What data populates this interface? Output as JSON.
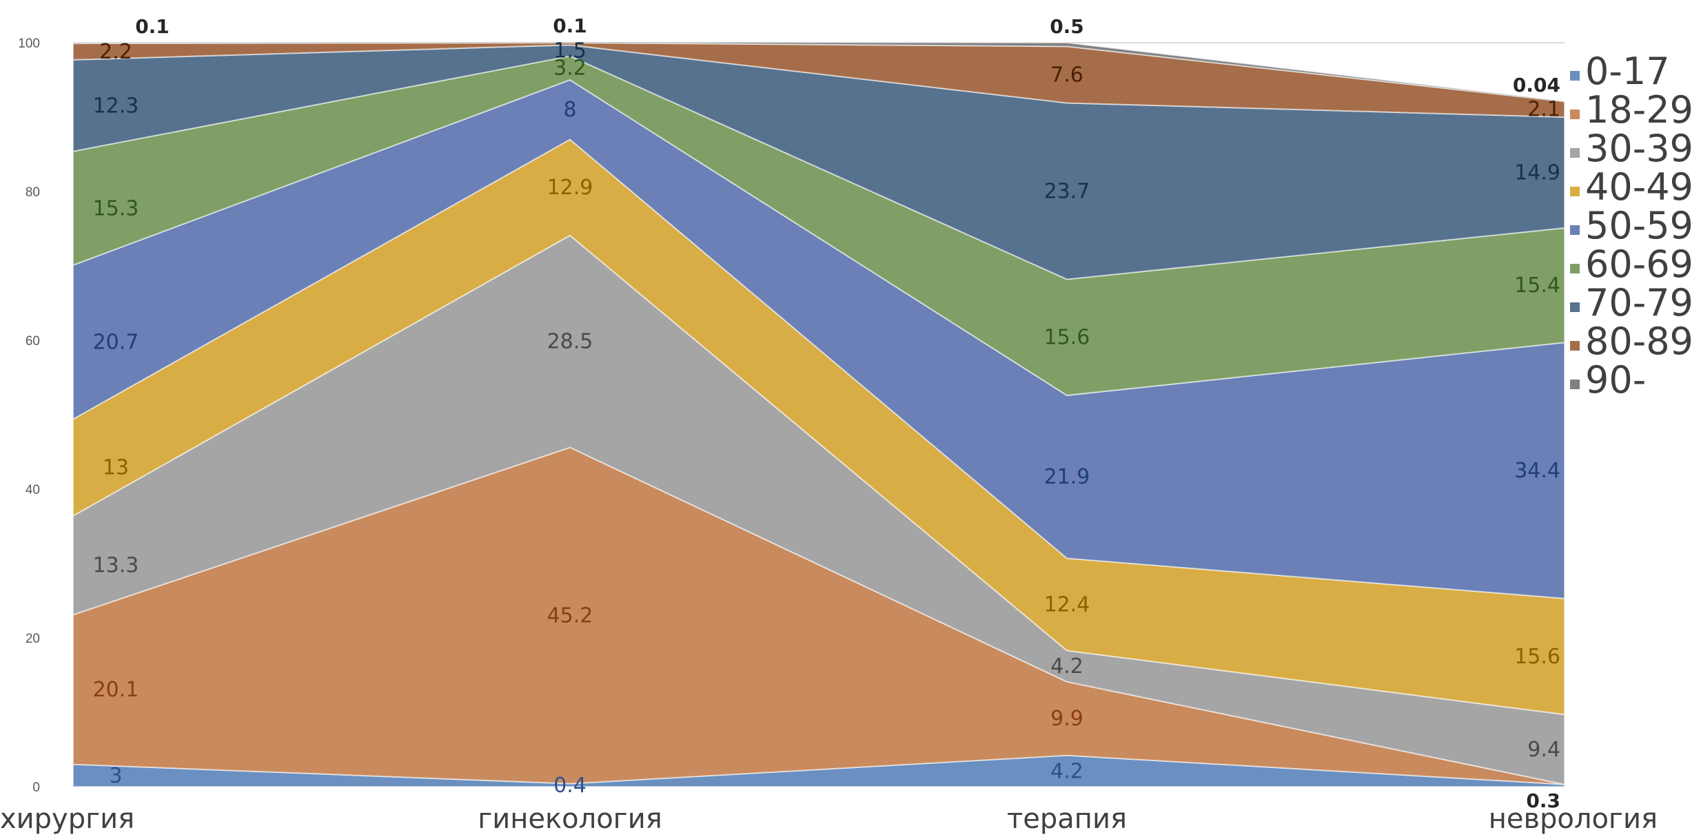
{
  "chart_data": {
    "type": "area",
    "stacked": true,
    "title": "",
    "xlabel": "",
    "ylabel": "",
    "categories": [
      "хирургия",
      "гинекология",
      "терапия",
      "неврология"
    ],
    "ylim": [
      0,
      100
    ],
    "y_ticks": [
      "0",
      "20",
      "40",
      "60",
      "80",
      "100"
    ],
    "grid": true,
    "legend_position": "right",
    "series": [
      {
        "name": "0-17",
        "color": "#6a8fc0",
        "label_color": "#2f4f8a",
        "values": [
          3,
          0.4,
          4.2,
          0.3
        ],
        "labels": [
          "3",
          "0.4",
          "4.2",
          "0.3"
        ]
      },
      {
        "name": "18-29",
        "color": "#c98a5e",
        "label_color": "#8a3f10",
        "values": [
          20.1,
          45.2,
          9.9,
          0
        ],
        "labels": [
          "20.1",
          "45.2",
          "9.9",
          ""
        ]
      },
      {
        "name": "30-39",
        "color": "#a5a5a5",
        "label_color": "#4a4a4a",
        "values": [
          13.3,
          28.5,
          4.2,
          9.4
        ],
        "labels": [
          "13.3",
          "28.5",
          "4.2",
          "9.4"
        ]
      },
      {
        "name": "40-49",
        "color": "#d9ad45",
        "label_color": "#8a6200",
        "values": [
          13,
          12.9,
          12.4,
          15.6
        ],
        "labels": [
          "13",
          "12.9",
          "12.4",
          "15.6"
        ]
      },
      {
        "name": "50-59",
        "color": "#6a80b6",
        "label_color": "#1f3f7a",
        "values": [
          20.7,
          8,
          21.9,
          34.4
        ],
        "labels": [
          "20.7",
          "8",
          "21.9",
          "34.4"
        ]
      },
      {
        "name": "60-69",
        "color": "#7f9f66",
        "label_color": "#2e5a1a",
        "values": [
          15.3,
          3.2,
          15.6,
          15.4
        ],
        "labels": [
          "15.3",
          "3.2",
          "15.6",
          "15.4"
        ]
      },
      {
        "name": "70-79",
        "color": "#56728f",
        "label_color": "#17324f",
        "values": [
          12.3,
          1.5,
          23.7,
          14.9
        ],
        "labels": [
          "12.3",
          "1.5",
          "23.7",
          "14.9"
        ]
      },
      {
        "name": "80-89",
        "color": "#a56d4a",
        "label_color": "#4a1f05",
        "values": [
          2.2,
          0.3,
          7.6,
          2.1
        ],
        "labels": [
          "2.2",
          "",
          "7.6",
          "2.1"
        ]
      },
      {
        "name": "90-",
        "color": "#7f7f7f",
        "label_color": "#262626",
        "values": [
          0.1,
          0.1,
          0.5,
          0.04
        ],
        "labels": [
          "0.1",
          "0.1",
          "0.5",
          "0.04"
        ]
      }
    ]
  }
}
